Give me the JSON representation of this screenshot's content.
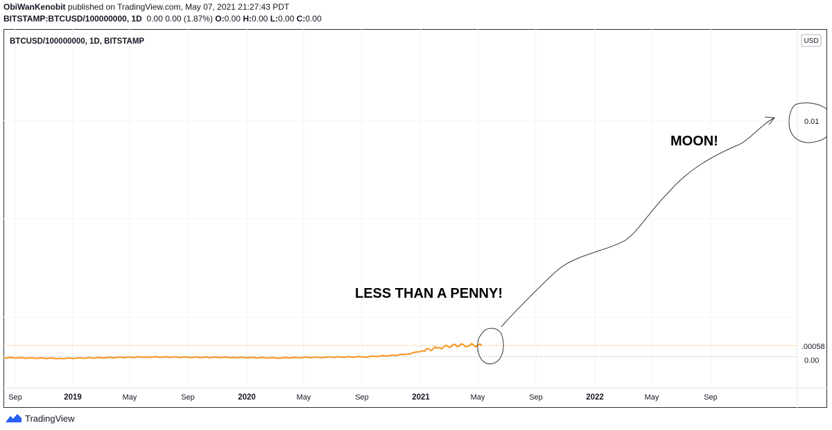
{
  "header": {
    "author": "ObiWanKenobit",
    "published_text": "published on TradingView.com, May 07, 2021 21:27:43 PDT",
    "symbol": "BITSTAMP:BTCUSD/100000000, 1D",
    "values_text": "0.00 0.00 (1.87%)",
    "o_label": "O:",
    "o_value": "0.00",
    "h_label": "H:",
    "h_value": "0.00",
    "l_label": "L:",
    "l_value": "0.00",
    "c_label": "C:",
    "c_value": "0.00"
  },
  "footer": {
    "brand": "TradingView"
  },
  "colors": {
    "series": "#f7931a",
    "grid": "#f0f3fa",
    "axis_text": "#131722",
    "annotation": "#000000"
  },
  "chart_data": {
    "type": "line",
    "title": "BTCUSD/100000000, 1D, BITSTAMP",
    "currency_button": "USD",
    "x_ticks": [
      "Sep",
      "2019",
      "May",
      "Sep",
      "2020",
      "May",
      "Sep",
      "2021",
      "May",
      "Sep",
      "2022",
      "May",
      "Sep"
    ],
    "y_labels": {
      "last_price": ".00058",
      "zero": "0.00",
      "target": "0.01"
    },
    "series": [
      {
        "x": [
          "2018-08",
          "2018-12",
          "2019-06",
          "2019-12",
          "2020-03",
          "2020-06",
          "2020-09",
          "2020-11",
          "2020-12",
          "2021-01",
          "2021-02",
          "2021-03",
          "2021-04",
          "2021-05"
        ],
        "values": [
          7e-05,
          4e-05,
          0.0001,
          8e-05,
          6e-05,
          9e-05,
          0.00011,
          0.00017,
          0.00024,
          0.00038,
          0.00049,
          0.00058,
          0.0006,
          0.00058
        ]
      }
    ],
    "annotations": [
      "LESS THAN A PENNY!",
      "MOON!"
    ],
    "grid": true,
    "legend": "none"
  }
}
